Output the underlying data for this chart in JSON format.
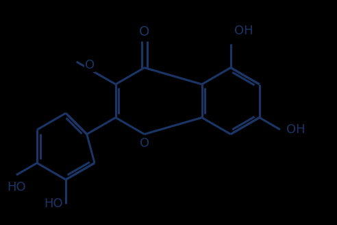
{
  "bg_color": "#000000",
  "line_color": "#1a3566",
  "line_width": 2.2,
  "font_size": 13,
  "font_color": "#1a3566",
  "fig_width": 6.0,
  "fig_height": 4.0
}
